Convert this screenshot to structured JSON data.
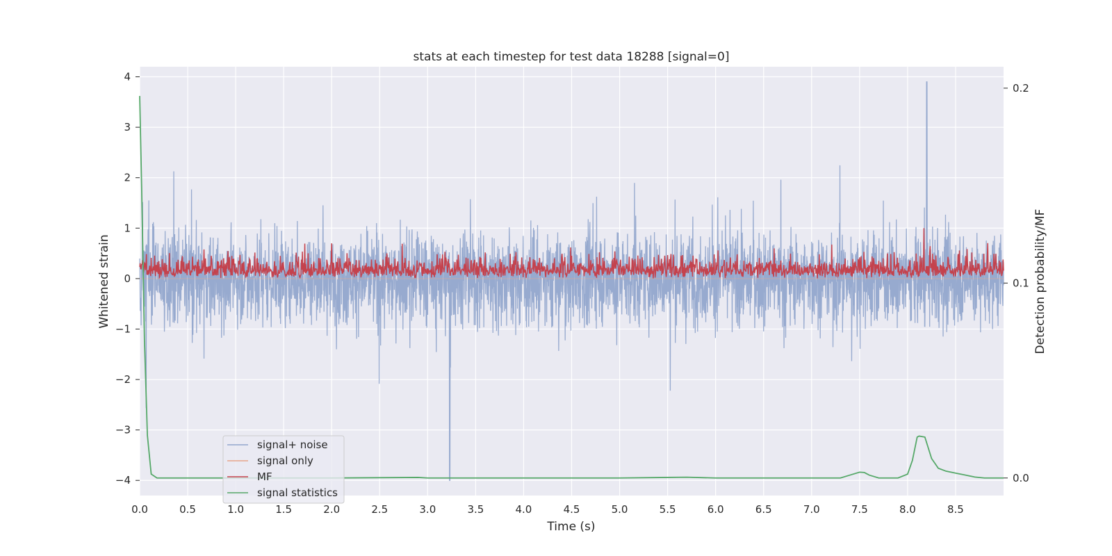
{
  "chart_data": {
    "type": "line",
    "title": "stats at each timestep for test data 18288 [signal=0]",
    "xlabel": "Time (s)",
    "ylabel": "Whitened strain",
    "y2label": "Detection probability/MF",
    "xlim": [
      0.0,
      9.0
    ],
    "ylim": [
      -4.3,
      4.2
    ],
    "y2lim": [
      -0.009,
      0.211
    ],
    "xticks": [
      "0.0",
      "0.5",
      "1.0",
      "1.5",
      "2.0",
      "2.5",
      "3.0",
      "3.5",
      "4.0",
      "4.5",
      "5.0",
      "5.5",
      "6.0",
      "6.5",
      "7.0",
      "7.5",
      "8.0",
      "8.5"
    ],
    "yticks": [
      "4",
      "3",
      "2",
      "1",
      "0",
      "−1",
      "−2",
      "−3",
      "−4"
    ],
    "y2ticks": [
      "0.2",
      "0.1",
      "0.0"
    ],
    "grid": true,
    "legend_position": "lower-left",
    "series": [
      {
        "name": "signal+ noise",
        "color": "#92a6cc",
        "description_of_values": "dense noise between about -4.0 and 3.9 over the full 0-9 s span",
        "noise_envelope": {
          "upper_typical": 1.9,
          "lower_typical": -1.9,
          "peak_max": 3.9,
          "peak_max_x": 8.2,
          "peak_min": -4.0,
          "peak_min_x": 3.23
        }
      },
      {
        "name": "signal only",
        "color": "#e8a589",
        "values_note": "flat at 0"
      },
      {
        "name": "MF",
        "color": "#c4424d",
        "description_of_values": "positive noisy band between 0 and about 0.9",
        "band": {
          "min": 0.0,
          "max": 0.95,
          "peak_x": 8.17,
          "peak_y": 1.0
        }
      },
      {
        "name": "signal statistics",
        "color": "#55a868",
        "axis": "right",
        "x": [
          0.0,
          0.02,
          0.05,
          0.08,
          0.12,
          0.18,
          0.25,
          0.5,
          1.0,
          2.0,
          2.9,
          3.0,
          4.0,
          5.0,
          5.5,
          5.7,
          6.0,
          7.0,
          7.3,
          7.4,
          7.5,
          7.55,
          7.6,
          7.7,
          7.9,
          8.0,
          8.05,
          8.1,
          8.12,
          8.18,
          8.25,
          8.32,
          8.4,
          8.5,
          8.6,
          8.7,
          8.8,
          9.0
        ],
        "y": [
          0.196,
          0.15,
          0.07,
          0.022,
          0.002,
          0.0,
          0.0,
          0.0,
          0.0,
          0.0,
          0.0003,
          0.0,
          0.0,
          0.0,
          0.0003,
          0.0004,
          0.0,
          0.0,
          0.0,
          0.0015,
          0.003,
          0.0028,
          0.0015,
          0.0,
          0.0,
          0.002,
          0.009,
          0.021,
          0.0215,
          0.021,
          0.01,
          0.005,
          0.0035,
          0.0025,
          0.0015,
          0.0005,
          0.0,
          0.0
        ]
      }
    ]
  },
  "colors": {
    "plot_background": "#eaeaf2",
    "grid": "#ffffff",
    "text": "#262626"
  }
}
